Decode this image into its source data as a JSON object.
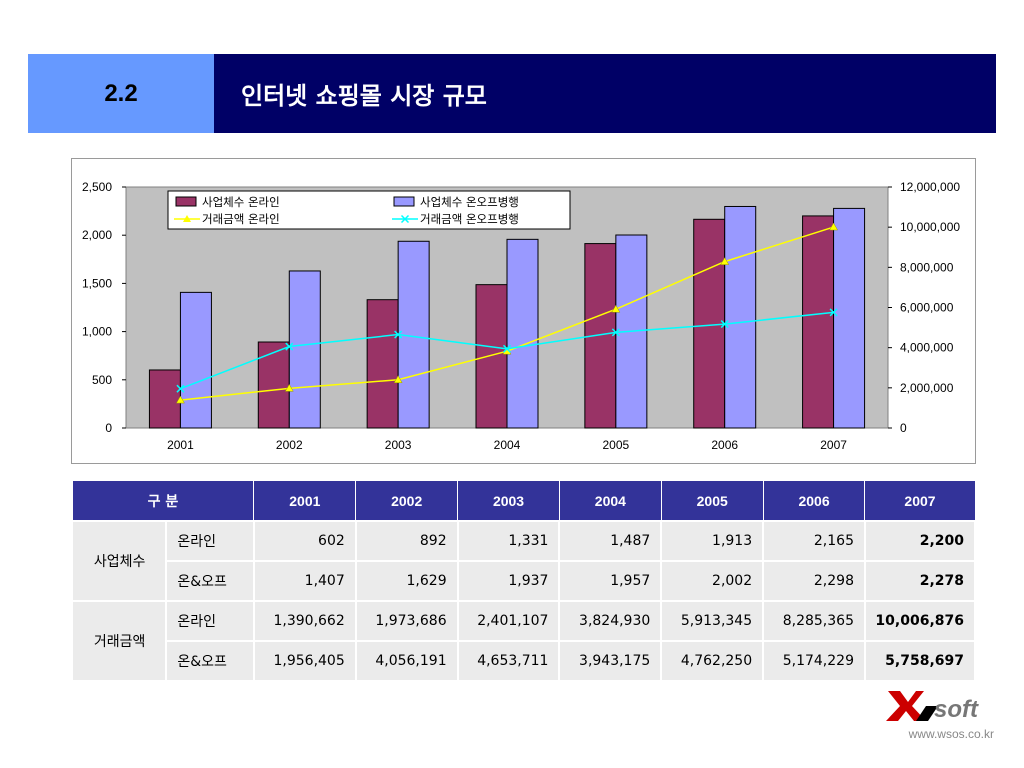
{
  "header": {
    "section_number": "2.2",
    "title": "인터넷 쇼핑몰 시장 규모"
  },
  "colors": {
    "header_left_bg": "#6699ff",
    "header_right_bg": "#000066",
    "plot_bg": "#c0c0c0",
    "bar_online": "#993366",
    "bar_offline": "#9999ff",
    "line_online": "#ffff00",
    "line_offline": "#00ffff",
    "table_header_bg": "#333399"
  },
  "chart_data": {
    "type": "bar",
    "categories": [
      "2001",
      "2002",
      "2003",
      "2004",
      "2005",
      "2006",
      "2007"
    ],
    "series": [
      {
        "name": "사업체수 온라인",
        "type": "bar",
        "axis": "left",
        "values": [
          602,
          892,
          1331,
          1487,
          1913,
          2165,
          2200
        ]
      },
      {
        "name": "사업체수 온오프병행",
        "type": "bar",
        "axis": "left",
        "values": [
          1407,
          1629,
          1937,
          1957,
          2002,
          2298,
          2278
        ]
      },
      {
        "name": "거래금액 온라인",
        "type": "line",
        "axis": "right",
        "marker": "triangle",
        "values": [
          1390662,
          1973686,
          2401107,
          3824930,
          5913345,
          8285365,
          10006876
        ]
      },
      {
        "name": "거래금액 온오프병행",
        "type": "line",
        "axis": "right",
        "marker": "x",
        "values": [
          1956405,
          4056191,
          4653711,
          3943175,
          4762250,
          5174229,
          5758697
        ]
      }
    ],
    "y_left": {
      "ylim": [
        0,
        2500
      ],
      "ticks": [
        "0",
        "500",
        "1,000",
        "1,500",
        "2,000",
        "2,500"
      ]
    },
    "y_right": {
      "ylim": [
        0,
        12000000
      ],
      "ticks": [
        "0",
        "2,000,000",
        "4,000,000",
        "6,000,000",
        "8,000,000",
        "10,000,000",
        "12,000,000"
      ]
    },
    "grid": false,
    "legend": "top-left inside plot"
  },
  "table": {
    "header": [
      "구 분",
      "2001",
      "2002",
      "2003",
      "2004",
      "2005",
      "2006",
      "2007"
    ],
    "groups": [
      {
        "label": "사업체수",
        "rows": [
          {
            "label": "온라인",
            "values": [
              "602",
              "892",
              "1,331",
              "1,487",
              "1,913",
              "2,165",
              "2,200"
            ]
          },
          {
            "label": "온&오프",
            "values": [
              "1,407",
              "1,629",
              "1,937",
              "1,957",
              "2,002",
              "2,298",
              "2,278"
            ]
          }
        ]
      },
      {
        "label": "거래금액",
        "rows": [
          {
            "label": "온라인",
            "values": [
              "1,390,662",
              "1,973,686",
              "2,401,107",
              "3,824,930",
              "5,913,345",
              "8,285,365",
              "10,006,876"
            ]
          },
          {
            "label": "온&오프",
            "values": [
              "1,956,405",
              "4,056,191",
              "4,653,711",
              "3,943,175",
              "4,762,250",
              "5,174,229",
              "5,758,697"
            ]
          }
        ]
      }
    ]
  },
  "footer": {
    "logo_mark": "X",
    "logo_text": "soft",
    "website": "www.wsos.co.kr"
  }
}
